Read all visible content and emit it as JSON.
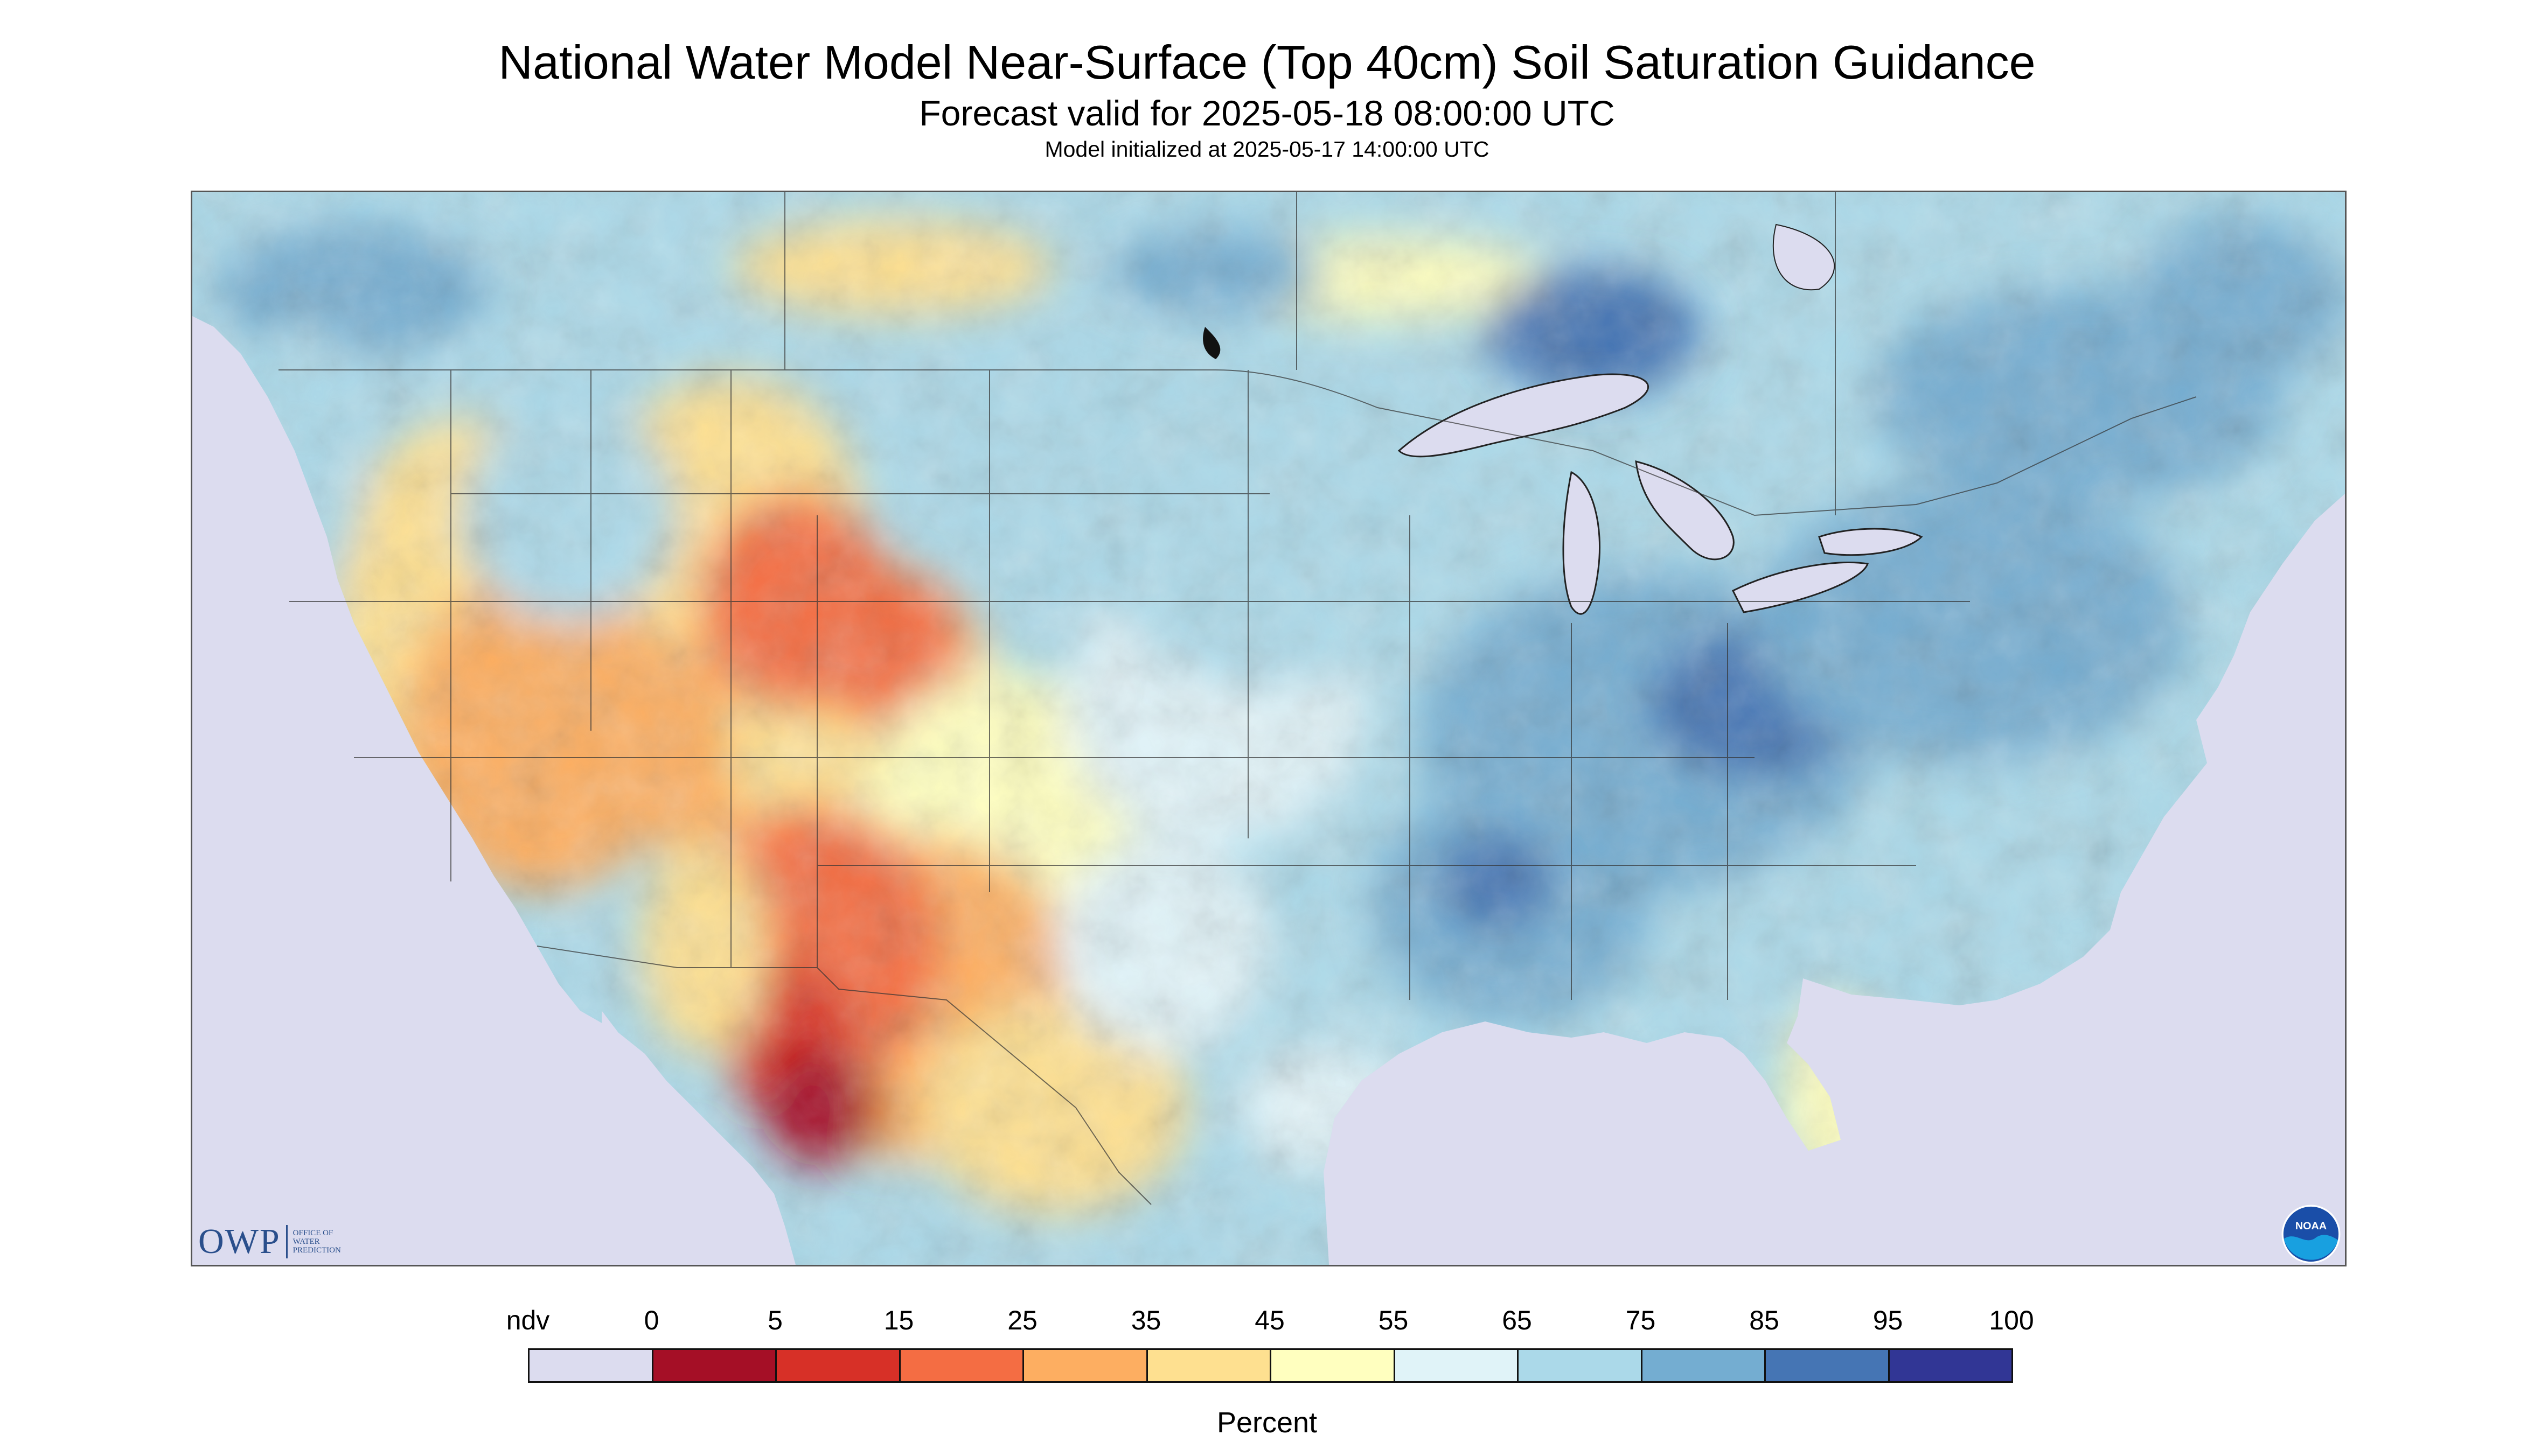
{
  "header": {
    "title": "National Water Model Near-Surface (Top 40cm) Soil Saturation Guidance",
    "subtitle": "Forecast valid for 2025-05-18 08:00:00 UTC",
    "init": "Model initialized at 2025-05-17 14:00:00 UTC"
  },
  "logos": {
    "owp_main": "OWP",
    "owp_line1": "OFFICE OF",
    "owp_line2": "WATER",
    "owp_line3": "PREDICTION",
    "noaa_text": "NOAA"
  },
  "legend": {
    "title": "Percent",
    "labels": [
      "ndv",
      "0",
      "5",
      "15",
      "25",
      "35",
      "45",
      "55",
      "65",
      "75",
      "85",
      "95",
      "100"
    ],
    "colors": [
      "#dcdcef",
      "#a50f26",
      "#d73027",
      "#f46d43",
      "#fdae61",
      "#fee090",
      "#ffffbf",
      "#e0f3f8",
      "#abd9e9",
      "#74add1",
      "#4575b4",
      "#313695"
    ]
  },
  "map": {
    "projection": "Lambert Conformal Conic",
    "region": "Contiguous United States, southern Canada and northern Mexico",
    "colors": {
      "no_data": "#dcdcef",
      "water": "#dcdcef",
      "border": "#222222"
    }
  }
}
